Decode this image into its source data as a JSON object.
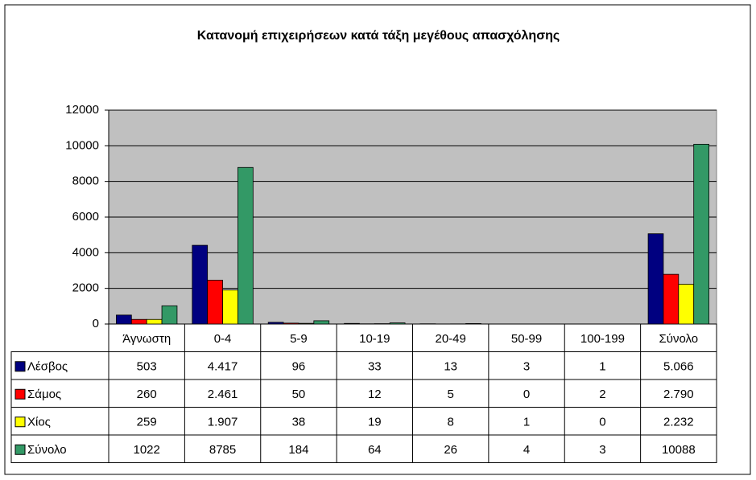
{
  "chart_data": {
    "type": "bar",
    "title": "Κατανομή επιχειρήσεων κατά τάξη μεγέθους απασχόλησης",
    "categories": [
      "Άγνωστη",
      "0-4",
      "5-9",
      "10-19",
      "20-49",
      "50-99",
      "100-199",
      "Σύνολο"
    ],
    "series": [
      {
        "name": "Λέσβος",
        "color": "#000080",
        "values": [
          503,
          4417,
          96,
          33,
          13,
          3,
          1,
          5066
        ],
        "value_labels": [
          "503",
          "4.417",
          "96",
          "33",
          "13",
          "3",
          "1",
          "5.066"
        ]
      },
      {
        "name": "Σάμος",
        "color": "#ff0000",
        "values": [
          260,
          2461,
          50,
          12,
          5,
          0,
          2,
          2790
        ],
        "value_labels": [
          "260",
          "2.461",
          "50",
          "12",
          "5",
          "0",
          "2",
          "2.790"
        ]
      },
      {
        "name": "Χίος",
        "color": "#ffff00",
        "values": [
          259,
          1907,
          38,
          19,
          8,
          1,
          0,
          2232
        ],
        "value_labels": [
          "259",
          "1.907",
          "38",
          "19",
          "8",
          "1",
          "0",
          "2.232"
        ]
      },
      {
        "name": "Σύνολο",
        "color": "#339966",
        "values": [
          1022,
          8785,
          184,
          64,
          26,
          4,
          3,
          10088
        ]
      }
    ],
    "ylim": [
      0,
      12000
    ],
    "yticks": [
      0,
      2000,
      4000,
      6000,
      8000,
      10000,
      12000
    ],
    "grid": true
  }
}
